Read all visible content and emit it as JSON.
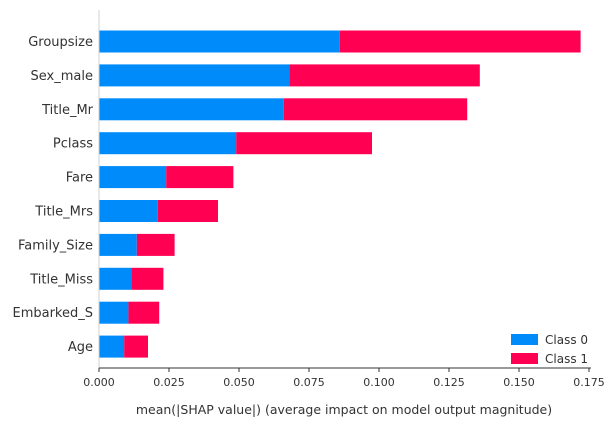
{
  "chart_data": {
    "type": "bar",
    "stacked": true,
    "orientation": "horizontal",
    "categories": [
      "Groupsize",
      "Sex_male",
      "Title_Mr",
      "Pclass",
      "Fare",
      "Title_Mrs",
      "Family_Size",
      "Title_Miss",
      "Embarked_S",
      "Age"
    ],
    "series": [
      {
        "name": "Class 0",
        "color": "#008bfb",
        "values": [
          0.086,
          0.068,
          0.066,
          0.049,
          0.024,
          0.021,
          0.0135,
          0.0115,
          0.0105,
          0.009
        ]
      },
      {
        "name": "Class 1",
        "color": "#ff0052",
        "values": [
          0.086,
          0.068,
          0.0655,
          0.0485,
          0.024,
          0.0215,
          0.0135,
          0.0115,
          0.011,
          0.0085
        ]
      }
    ],
    "xlabel": "mean(|SHAP value|) (average impact on model output magnitude)",
    "xlim": [
      0,
      0.175
    ],
    "xticks": [
      "0.000",
      "0.025",
      "0.050",
      "0.075",
      "0.100",
      "0.125",
      "0.150",
      "0.175"
    ],
    "legend_position": "bottom-right",
    "grid": false
  }
}
